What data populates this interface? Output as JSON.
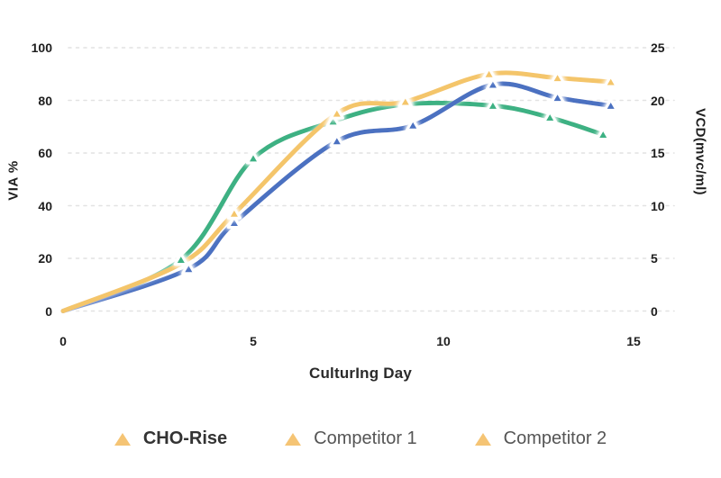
{
  "chart_data": {
    "type": "line",
    "title": "",
    "xlabel": "CulturIng Day",
    "ylabel_left": "VIA %",
    "ylabel_right": "VCD(mvc/ml)",
    "x_ticks": [
      0,
      5,
      10,
      15
    ],
    "y_left_ticks": [
      0,
      20,
      40,
      60,
      80,
      100
    ],
    "y_right_ticks": [
      0,
      5,
      10,
      15,
      20,
      25
    ],
    "xlim": [
      0,
      16
    ],
    "ylim_left": [
      0,
      100
    ],
    "ylim_right": [
      0,
      25
    ],
    "grid": "horizontal-dashed",
    "legend_position": "bottom",
    "marker_shape": "triangle-up",
    "series": [
      {
        "name": "CHO-Rise",
        "color": "#F4C56A",
        "days": [
          0,
          3.1,
          4.5,
          7.2,
          9.0,
          11.2,
          13.0,
          14.4
        ],
        "via_pct": [
          0,
          18,
          37,
          75,
          79.5,
          90,
          88.5,
          87
        ],
        "vcd": [
          0,
          4.5,
          9.3,
          18.8,
          19.9,
          22.5,
          22.1,
          21.8
        ],
        "marker_hidden_indices": [
          0,
          1
        ]
      },
      {
        "name": "Competitor 1",
        "color": "#4B71C1",
        "days": [
          0,
          3.3,
          4.5,
          7.2,
          9.2,
          11.3,
          13.0,
          14.4
        ],
        "via_pct": [
          0,
          16,
          33.5,
          64.5,
          70.5,
          86,
          81,
          78
        ],
        "vcd": [
          0,
          4.0,
          8.4,
          16.1,
          17.6,
          21.5,
          20.3,
          19.5
        ],
        "marker_hidden_indices": [
          0
        ]
      },
      {
        "name": "Competitor 2",
        "color": "#3DB183",
        "days": [
          0,
          3.1,
          5.0,
          7.1,
          9.0,
          11.3,
          12.8,
          14.2
        ],
        "via_pct": [
          0,
          19.5,
          58,
          72,
          78.5,
          78,
          73.5,
          67
        ],
        "vcd": [
          0,
          4.9,
          14.5,
          18.0,
          19.6,
          19.5,
          18.4,
          16.8
        ],
        "marker_hidden_indices": [
          0
        ]
      }
    ],
    "legend": {
      "marker_color": "#F5C474",
      "items": [
        "CHO-Rise",
        "Competitor 1",
        "Competitor 2"
      ]
    },
    "colors": {
      "background": "#ffffff",
      "grid": "#E2E2E2",
      "tick_text": "#1E1E1E",
      "legend_highlight_text": "#333333",
      "legend_muted_text": "#555555"
    }
  }
}
